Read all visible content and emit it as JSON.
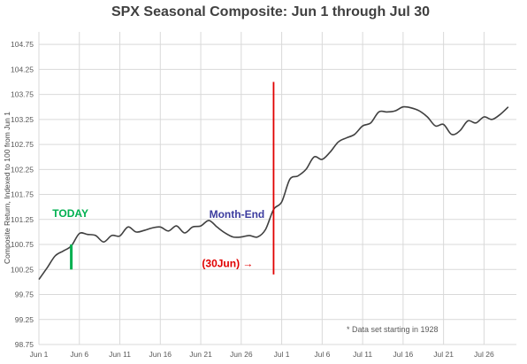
{
  "chart_data": {
    "type": "line",
    "title": "SPX Seasonal Composite: Jun 1 through Jul 30",
    "ylabel": "Composite Return, Indexed to 100 from Jun 1",
    "ylim": [
      98.75,
      105.0
    ],
    "yticks": [
      "98.75",
      "99.25",
      "99.75",
      "100.25",
      "100.75",
      "101.25",
      "101.75",
      "102.25",
      "102.75",
      "103.25",
      "103.75",
      "104.25",
      "104.75"
    ],
    "xlim": [
      1,
      60
    ],
    "xticks": [
      {
        "label": "Jun 1",
        "x": 1
      },
      {
        "label": "Jun 6",
        "x": 6
      },
      {
        "label": "Jun 11",
        "x": 11
      },
      {
        "label": "Jun 16",
        "x": 16
      },
      {
        "label": "Jun 21",
        "x": 21
      },
      {
        "label": "Jun 26",
        "x": 26
      },
      {
        "label": "Jul 1",
        "x": 31
      },
      {
        "label": "Jul 6",
        "x": 36
      },
      {
        "label": "Jul 11",
        "x": 41
      },
      {
        "label": "Jul 16",
        "x": 46
      },
      {
        "label": "Jul 21",
        "x": 51
      },
      {
        "label": "Jul 26",
        "x": 56
      }
    ],
    "grid": true,
    "series": [
      {
        "values": [
          {
            "x": 1,
            "y": 100.05
          },
          {
            "x": 2,
            "y": 100.28
          },
          {
            "x": 3,
            "y": 100.52
          },
          {
            "x": 4,
            "y": 100.62
          },
          {
            "x": 5,
            "y": 100.72
          },
          {
            "x": 6,
            "y": 100.97
          },
          {
            "x": 7,
            "y": 100.95
          },
          {
            "x": 8,
            "y": 100.93
          },
          {
            "x": 9,
            "y": 100.8
          },
          {
            "x": 10,
            "y": 100.93
          },
          {
            "x": 11,
            "y": 100.92
          },
          {
            "x": 12,
            "y": 101.1
          },
          {
            "x": 13,
            "y": 101.0
          },
          {
            "x": 14,
            "y": 101.03
          },
          {
            "x": 15,
            "y": 101.08
          },
          {
            "x": 16,
            "y": 101.1
          },
          {
            "x": 17,
            "y": 101.02
          },
          {
            "x": 18,
            "y": 101.12
          },
          {
            "x": 19,
            "y": 100.98
          },
          {
            "x": 20,
            "y": 101.1
          },
          {
            "x": 21,
            "y": 101.12
          },
          {
            "x": 22,
            "y": 101.23
          },
          {
            "x": 23,
            "y": 101.1
          },
          {
            "x": 24,
            "y": 100.98
          },
          {
            "x": 25,
            "y": 100.9
          },
          {
            "x": 26,
            "y": 100.9
          },
          {
            "x": 27,
            "y": 100.93
          },
          {
            "x": 28,
            "y": 100.9
          },
          {
            "x": 29,
            "y": 101.05
          },
          {
            "x": 30,
            "y": 101.45
          },
          {
            "x": 31,
            "y": 101.6
          },
          {
            "x": 32,
            "y": 102.05
          },
          {
            "x": 33,
            "y": 102.12
          },
          {
            "x": 34,
            "y": 102.25
          },
          {
            "x": 35,
            "y": 102.5
          },
          {
            "x": 36,
            "y": 102.45
          },
          {
            "x": 37,
            "y": 102.6
          },
          {
            "x": 38,
            "y": 102.8
          },
          {
            "x": 39,
            "y": 102.88
          },
          {
            "x": 40,
            "y": 102.95
          },
          {
            "x": 41,
            "y": 103.12
          },
          {
            "x": 42,
            "y": 103.18
          },
          {
            "x": 43,
            "y": 103.4
          },
          {
            "x": 44,
            "y": 103.4
          },
          {
            "x": 45,
            "y": 103.42
          },
          {
            "x": 46,
            "y": 103.5
          },
          {
            "x": 47,
            "y": 103.48
          },
          {
            "x": 48,
            "y": 103.42
          },
          {
            "x": 49,
            "y": 103.3
          },
          {
            "x": 50,
            "y": 103.12
          },
          {
            "x": 51,
            "y": 103.15
          },
          {
            "x": 52,
            "y": 102.95
          },
          {
            "x": 53,
            "y": 103.02
          },
          {
            "x": 54,
            "y": 103.22
          },
          {
            "x": 55,
            "y": 103.18
          },
          {
            "x": 56,
            "y": 103.3
          },
          {
            "x": 57,
            "y": 103.25
          },
          {
            "x": 58,
            "y": 103.35
          },
          {
            "x": 59,
            "y": 103.5
          }
        ],
        "color": "#404040"
      }
    ],
    "annotations": [
      {
        "name": "today",
        "text": "TODAY",
        "color": "#00b050",
        "x": 5,
        "y_from": 100.25,
        "y_to": 100.75
      },
      {
        "name": "month-end",
        "text": "Month-End",
        "color": "#3b3b9e",
        "x": 29,
        "y": 101.25
      },
      {
        "name": "june-30",
        "text": "(30Jun) →",
        "color": "#e00000",
        "x": 30,
        "y_from": 100.15,
        "y_to": 104.0
      }
    ],
    "footnote": "* Data set starting in 1928"
  }
}
